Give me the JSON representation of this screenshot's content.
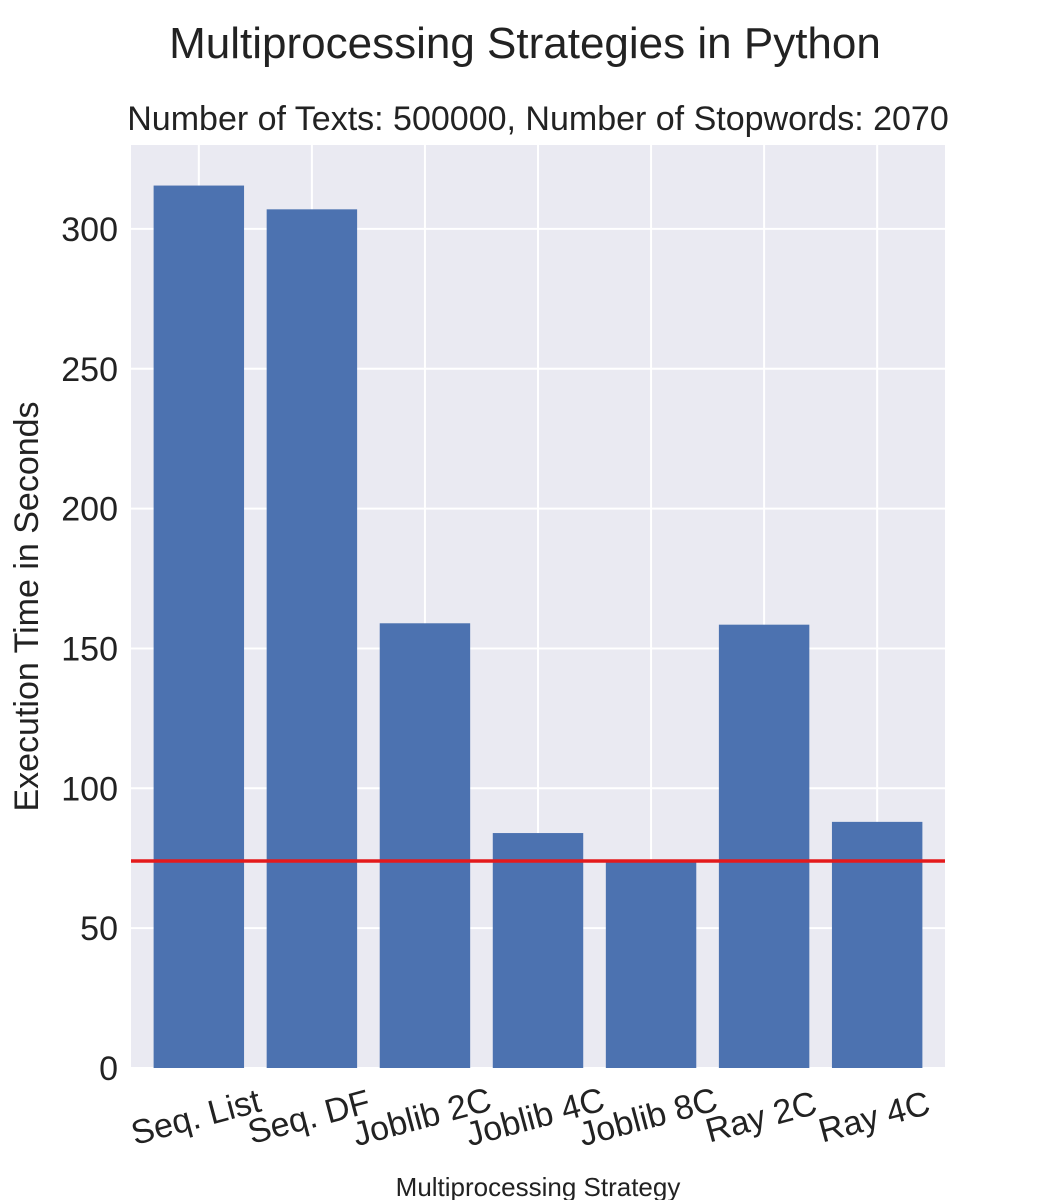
{
  "chart_data": {
    "type": "bar",
    "title": "Multiprocessing Strategies in Python",
    "subtitle": "Number of Texts: 500000, Number of Stopwords: 2070",
    "xlabel": "Multiprocessing Strategy",
    "ylabel": "Execution Time in Seconds",
    "categories": [
      "Seq. List",
      "Seq. DF",
      "Joblib 2C",
      "Joblib 4C",
      "Joblib 8C",
      "Ray 2C",
      "Ray 4C"
    ],
    "values": [
      315.5,
      307,
      159,
      84,
      74,
      158.5,
      88
    ],
    "reference_line": {
      "value": 74,
      "color": "#e41a1c"
    },
    "ylim": [
      0,
      330
    ],
    "yticks": [
      0,
      50,
      100,
      150,
      200,
      250,
      300
    ],
    "grid": true,
    "bar_color": "#4c72b0",
    "background_color": "#eaeaf2",
    "grid_color": "#ffffff"
  }
}
